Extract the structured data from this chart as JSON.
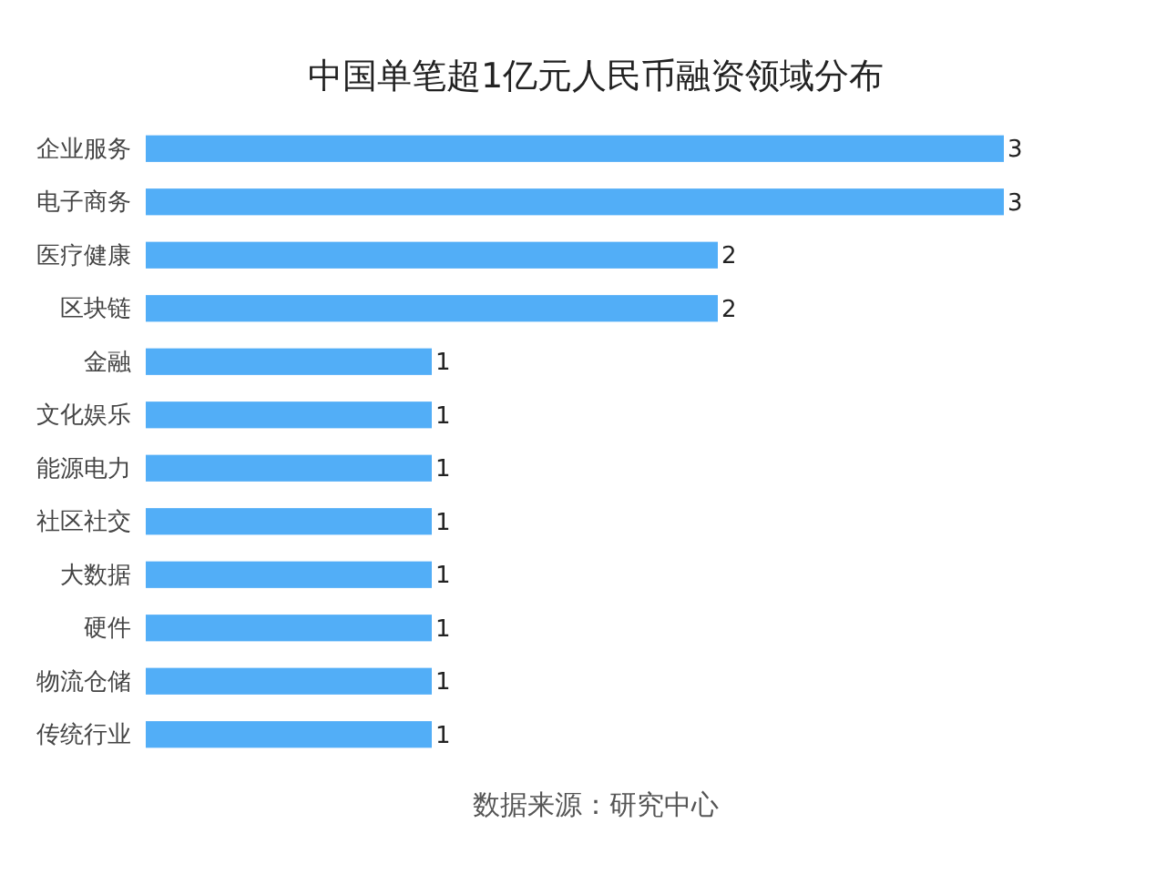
{
  "chart_data": {
    "type": "bar",
    "orientation": "horizontal",
    "title": "中国单笔超1亿元人民币融资领域分布",
    "categories": [
      "企业服务",
      "电子商务",
      "医疗健康",
      "区块链",
      "金融",
      "文化娱乐",
      "能源电力",
      "社区社交",
      "大数据",
      "硬件",
      "物流仓储",
      "传统行业"
    ],
    "values": [
      3,
      3,
      2,
      2,
      1,
      1,
      1,
      1,
      1,
      1,
      1,
      1
    ],
    "color": "#52aef7",
    "data_labels": true,
    "annotations": [
      "数据来源：研究中心"
    ]
  }
}
